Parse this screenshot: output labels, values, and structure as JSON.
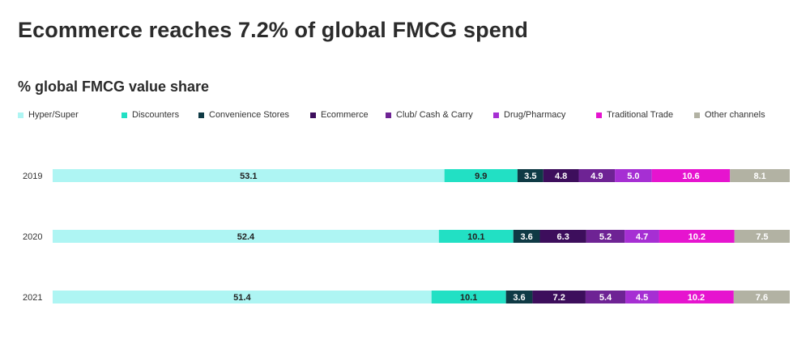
{
  "title": "Ecommerce reaches 7.2% of global FMCG spend",
  "subtitle": "% global FMCG value share",
  "chart_data": {
    "type": "bar",
    "orientation": "horizontal",
    "stacked": true,
    "title": "Ecommerce reaches 7.2% of global FMCG spend",
    "subtitle": "% global FMCG value share",
    "categories": [
      "2019",
      "2020",
      "2021"
    ],
    "legend_position": "top",
    "grid": false,
    "series": [
      {
        "name": "Hyper/Super",
        "color": "#aef5f3",
        "label_color": "#222222",
        "values": [
          53.1,
          52.4,
          51.4
        ]
      },
      {
        "name": "Discounters",
        "color": "#22e0c4",
        "label_color": "#222222",
        "values": [
          9.9,
          10.1,
          10.1
        ]
      },
      {
        "name": "Convenience Stores",
        "color": "#0f3a45",
        "label_color": "#ffffff",
        "values": [
          3.5,
          3.6,
          3.6
        ]
      },
      {
        "name": "Ecommerce",
        "color": "#3d0e5c",
        "label_color": "#ffffff",
        "values": [
          4.8,
          6.3,
          7.2
        ]
      },
      {
        "name": "Club/ Cash & Carry",
        "color": "#6e2394",
        "label_color": "#ffffff",
        "values": [
          4.9,
          5.2,
          5.4
        ]
      },
      {
        "name": "Drug/Pharmacy",
        "color": "#a62fd3",
        "label_color": "#ffffff",
        "values": [
          5.0,
          4.7,
          4.5
        ]
      },
      {
        "name": "Traditional Trade",
        "color": "#e614cf",
        "label_color": "#ffffff",
        "values": [
          10.6,
          10.2,
          10.2
        ]
      },
      {
        "name": "Other channels",
        "color": "#b2b2a3",
        "label_color": "#ffffff",
        "values": [
          8.1,
          7.5,
          7.6
        ]
      }
    ]
  }
}
